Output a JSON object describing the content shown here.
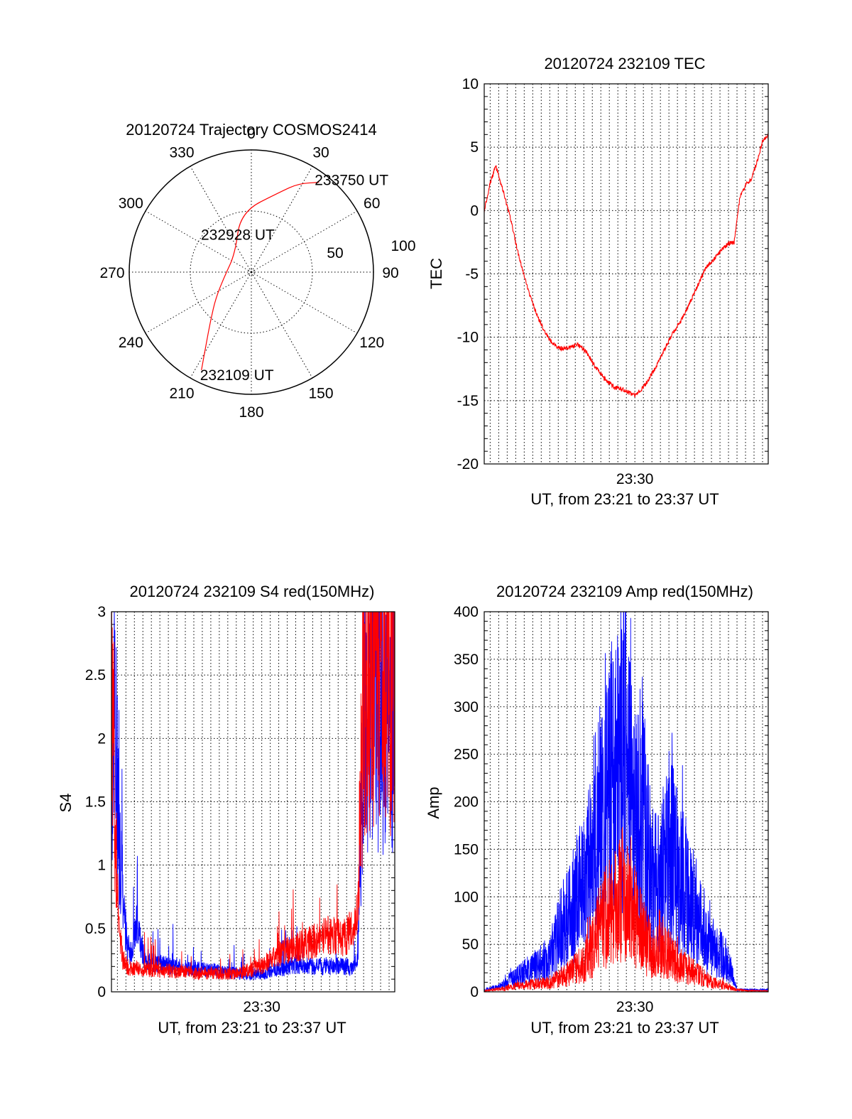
{
  "chart_data": [
    {
      "type": "polar",
      "title": "20120724 Trajectory COSMOS2414",
      "angle_labels": [
        "0",
        "30",
        "60",
        "90",
        "120",
        "150",
        "180",
        "210",
        "240",
        "270",
        "300",
        "330"
      ],
      "radial_labels": [
        "50",
        "100"
      ],
      "rlim": [
        0,
        100
      ],
      "grid": true,
      "series": [
        {
          "color": "#ff0000",
          "points": [
            {
              "az": 207,
              "r": 90
            },
            {
              "az": 212,
              "r": 70
            },
            {
              "az": 220,
              "r": 52
            },
            {
              "az": 234,
              "r": 36
            },
            {
              "az": 262,
              "r": 22
            },
            {
              "az": 318,
              "r": 20
            },
            {
              "az": 350,
              "r": 50
            },
            {
              "az": 20,
              "r": 70
            },
            {
              "az": 28,
              "r": 82
            },
            {
              "az": 37,
              "r": 92
            }
          ]
        }
      ],
      "annotations": [
        {
          "text": "233750 UT",
          "az": 37,
          "r": 92
        },
        {
          "text": "232928 UT",
          "az": 318,
          "r": 20
        },
        {
          "text": "232109 UT",
          "az": 207,
          "r": 90
        }
      ]
    },
    {
      "type": "line",
      "title": "20120724 232109 TEC",
      "xlabel": "UT, from 23:21 to 23:37 UT",
      "ylabel": "TEC",
      "xlim": [
        "23:21:09",
        "23:37:50"
      ],
      "ylim": [
        -20,
        10
      ],
      "yticks": [
        "10",
        "5",
        "0",
        "-5",
        "-10",
        "-15",
        "-20"
      ],
      "xticks": [
        {
          "label": "23:30",
          "t": "23:30:00"
        }
      ],
      "grid": true,
      "series": [
        {
          "color": "#ff0000",
          "x": [
            "23:21:09",
            "23:21:30",
            "23:21:50",
            "23:22:10",
            "23:22:40",
            "23:23:10",
            "23:23:40",
            "23:24:10",
            "23:24:40",
            "23:25:10",
            "23:25:40",
            "23:26:10",
            "23:26:40",
            "23:27:10",
            "23:27:30",
            "23:27:50",
            "23:28:10",
            "23:28:30",
            "23:28:50",
            "23:29:10",
            "23:29:30",
            "23:30:00",
            "23:30:20",
            "23:30:40",
            "23:31:10",
            "23:31:40",
            "23:32:10",
            "23:32:40",
            "23:33:10",
            "23:33:40",
            "23:34:10",
            "23:34:40",
            "23:35:10",
            "23:35:30",
            "23:35:50",
            "23:36:10",
            "23:36:30",
            "23:36:50",
            "23:37:10",
            "23:37:30",
            "23:37:50"
          ],
          "y": [
            0,
            2.2,
            3.5,
            2.0,
            -0.5,
            -3.5,
            -6.0,
            -8.0,
            -9.5,
            -10.5,
            -10.9,
            -10.8,
            -10.6,
            -11.2,
            -12.0,
            -12.6,
            -13.2,
            -13.6,
            -14.0,
            -14.0,
            -14.3,
            -14.6,
            -14.2,
            -13.6,
            -12.5,
            -11.2,
            -9.8,
            -8.8,
            -7.5,
            -6.0,
            -4.5,
            -3.8,
            -3.0,
            -2.6,
            -2.5,
            1.0,
            2.0,
            2.5,
            3.8,
            5.5,
            6.0
          ]
        }
      ]
    },
    {
      "type": "line",
      "title": "20120724 232109 S4 red(150MHz)",
      "xlabel": "UT, from 23:21 to 23:37 UT",
      "ylabel": "S4",
      "xlim": [
        "23:21:09",
        "23:37:50"
      ],
      "ylim": [
        0,
        3
      ],
      "yticks": [
        "3",
        "2.5",
        "2",
        "1.5",
        "1",
        "0.5",
        "0"
      ],
      "xticks": [
        {
          "label": "23:30",
          "t": "23:30:00"
        }
      ],
      "grid": true,
      "series": [
        {
          "color": "#0000ff",
          "x": [
            "23:21:09",
            "23:21:20",
            "23:21:35",
            "23:21:50",
            "23:22:05",
            "23:22:20",
            "23:22:40",
            "23:23:00",
            "23:23:20",
            "23:24:00",
            "23:25:00",
            "23:26:00",
            "23:27:00",
            "23:28:00",
            "23:29:00",
            "23:30:00",
            "23:31:00",
            "23:32:00",
            "23:33:00",
            "23:34:00",
            "23:34:40",
            "23:35:00",
            "23:35:20",
            "23:35:40",
            "23:36:00",
            "23:36:30",
            "23:37:00",
            "23:37:30",
            "23:37:50"
          ],
          "y": [
            1.6,
            2.1,
            1.5,
            0.7,
            0.35,
            0.3,
            0.55,
            0.3,
            0.25,
            0.22,
            0.2,
            0.18,
            0.17,
            0.15,
            0.14,
            0.14,
            0.18,
            0.22,
            0.2,
            0.2,
            0.2,
            0.2,
            0.18,
            0.3,
            2.2,
            2.4,
            2.3,
            2.5,
            2.4
          ]
        },
        {
          "color": "#ff0000",
          "x": [
            "23:21:09",
            "23:21:20",
            "23:21:35",
            "23:21:50",
            "23:22:05",
            "23:22:20",
            "23:22:40",
            "23:23:00",
            "23:23:20",
            "23:24:00",
            "23:25:00",
            "23:26:00",
            "23:27:00",
            "23:28:00",
            "23:29:00",
            "23:30:00",
            "23:31:00",
            "23:32:00",
            "23:33:00",
            "23:34:00",
            "23:34:40",
            "23:35:00",
            "23:35:20",
            "23:35:40",
            "23:36:00",
            "23:36:30",
            "23:37:00",
            "23:37:30",
            "23:37:50"
          ],
          "y": [
            2.8,
            1.5,
            0.5,
            0.25,
            0.2,
            0.18,
            0.2,
            0.17,
            0.18,
            0.17,
            0.16,
            0.15,
            0.15,
            0.14,
            0.16,
            0.2,
            0.3,
            0.35,
            0.4,
            0.45,
            0.42,
            0.45,
            0.5,
            0.6,
            2.6,
            2.8,
            2.9,
            2.7,
            2.8
          ]
        }
      ]
    },
    {
      "type": "line",
      "title": "20120724 232109 Amp red(150MHz)",
      "xlabel": "UT, from 23:21 to 23:37 UT",
      "ylabel": "Amp",
      "xlim": [
        "23:21:09",
        "23:37:50"
      ],
      "ylim": [
        0,
        400
      ],
      "yticks": [
        "400",
        "350",
        "300",
        "250",
        "200",
        "150",
        "100",
        "50",
        "0"
      ],
      "xticks": [
        {
          "label": "23:30",
          "t": "23:30:00"
        }
      ],
      "grid": true,
      "series": [
        {
          "color": "#0000ff",
          "x": [
            "23:21:09",
            "23:22:00",
            "23:23:00",
            "23:24:00",
            "23:25:00",
            "23:25:30",
            "23:26:00",
            "23:26:30",
            "23:27:00",
            "23:27:30",
            "23:28:00",
            "23:28:30",
            "23:29:00",
            "23:29:20",
            "23:29:40",
            "23:30:00",
            "23:30:30",
            "23:31:00",
            "23:31:30",
            "23:32:00",
            "23:32:30",
            "23:33:00",
            "23:33:30",
            "23:34:00",
            "23:34:30",
            "23:35:00",
            "23:35:30",
            "23:36:00",
            "23:37:00",
            "23:37:50"
          ],
          "y": [
            2,
            5,
            15,
            25,
            35,
            60,
            80,
            95,
            110,
            150,
            200,
            220,
            230,
            260,
            210,
            200,
            180,
            120,
            110,
            150,
            130,
            110,
            90,
            60,
            45,
            40,
            30,
            2,
            2,
            2
          ]
        },
        {
          "color": "#ff0000",
          "x": [
            "23:21:09",
            "23:22:00",
            "23:23:00",
            "23:24:00",
            "23:25:00",
            "23:26:00",
            "23:26:30",
            "23:27:00",
            "23:27:30",
            "23:28:00",
            "23:28:30",
            "23:29:00",
            "23:29:20",
            "23:29:40",
            "23:30:00",
            "23:30:30",
            "23:31:00",
            "23:31:30",
            "23:32:00",
            "23:32:30",
            "23:33:00",
            "23:33:30",
            "23:34:00",
            "23:34:30",
            "23:35:00",
            "23:35:30",
            "23:36:00",
            "23:37:00",
            "23:37:50"
          ],
          "y": [
            1,
            3,
            6,
            8,
            10,
            18,
            25,
            30,
            45,
            70,
            85,
            95,
            110,
            90,
            80,
            60,
            40,
            45,
            40,
            30,
            25,
            20,
            15,
            10,
            8,
            5,
            2,
            1,
            1
          ]
        }
      ]
    }
  ]
}
